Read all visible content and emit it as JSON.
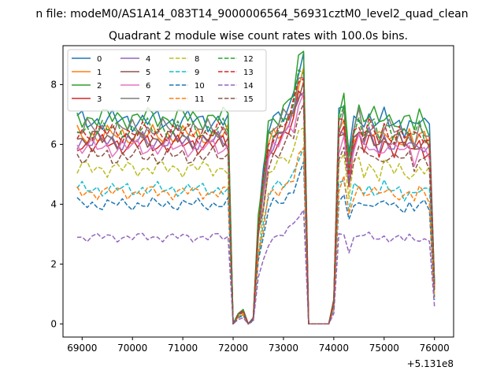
{
  "suptitle": "n file: modeM0/AS1A14_083T14_9000006564_56931cztM0_level2_quad_clean",
  "chart_data": {
    "type": "line",
    "title": "Quadrant 2 module wise count rates with 100.0s bins.",
    "xlabel": "",
    "ylabel": "",
    "x_offset_label": "+5.131e8",
    "xlim": [
      68620,
      76380
    ],
    "ylim": [
      -0.44,
      9.3
    ],
    "xticks": [
      69000,
      70000,
      71000,
      72000,
      73000,
      74000,
      75000,
      76000
    ],
    "xtick_labels": [
      "69000",
      "70000",
      "71000",
      "72000",
      "73000",
      "74000",
      "75000",
      "76000"
    ],
    "yticks": [
      0,
      2,
      4,
      6,
      8
    ],
    "ytick_labels": [
      "0",
      "2",
      "4",
      "6",
      "8"
    ],
    "legend": {
      "placement": "top-left",
      "columns": 4
    },
    "base_profile": {
      "x": [
        68900,
        69000,
        69100,
        69200,
        69300,
        69400,
        69500,
        69600,
        69700,
        69800,
        69900,
        70000,
        70100,
        70200,
        70300,
        70400,
        70500,
        70600,
        70700,
        70800,
        70900,
        71000,
        71100,
        71200,
        71300,
        71400,
        71500,
        71600,
        71700,
        71800,
        71900,
        72000,
        72100,
        72200,
        72300,
        72400,
        72500,
        72600,
        72700,
        72800,
        72900,
        73000,
        73100,
        73200,
        73300,
        73400,
        73500,
        73600,
        73700,
        73800,
        73900,
        74000,
        74100,
        74200,
        74300,
        74400,
        74500,
        74600,
        74700,
        74800,
        74900,
        75000,
        75100,
        75200,
        75300,
        75400,
        75500,
        75600,
        75700,
        75800,
        75900,
        76000
      ],
      "shape": [
        1.0,
        1.0,
        1.0,
        1.0,
        1.0,
        1.0,
        1.0,
        1.0,
        1.0,
        1.0,
        1.0,
        1.0,
        1.0,
        1.0,
        1.0,
        1.0,
        1.0,
        1.0,
        1.0,
        1.0,
        1.0,
        1.0,
        1.0,
        1.0,
        1.0,
        1.0,
        1.0,
        1.0,
        1.0,
        1.0,
        1.0,
        0.0,
        0.05,
        0.07,
        0.0,
        0.03,
        0.5,
        0.72,
        0.95,
        1.0,
        1.02,
        1.05,
        1.08,
        1.12,
        1.25,
        1.3,
        0.0,
        0.0,
        0.0,
        0.0,
        0.0,
        0.12,
        1.02,
        1.08,
        0.82,
        1.0,
        1.05,
        0.98,
        1.02,
        1.0,
        0.96,
        1.02,
        1.0,
        0.98,
        1.0,
        0.97,
        0.99,
        0.95,
        1.0,
        0.98,
        0.96,
        0.2
      ]
    },
    "series": [
      {
        "name": "0",
        "level": 6.8,
        "dashed": false,
        "color": "#1f77b4"
      },
      {
        "name": "1",
        "level": 6.3,
        "dashed": false,
        "color": "#ff7f0e"
      },
      {
        "name": "2",
        "level": 6.9,
        "dashed": false,
        "color": "#2ca02c"
      },
      {
        "name": "3",
        "level": 6.0,
        "dashed": false,
        "color": "#d62728"
      },
      {
        "name": "4",
        "level": 6.1,
        "dashed": false,
        "color": "#9467bd"
      },
      {
        "name": "5",
        "level": 6.2,
        "dashed": false,
        "color": "#8c564b"
      },
      {
        "name": "6",
        "level": 5.9,
        "dashed": false,
        "color": "#e377c2"
      },
      {
        "name": "7",
        "level": 6.5,
        "dashed": false,
        "color": "#7f7f7f"
      },
      {
        "name": "8",
        "level": 5.2,
        "dashed": true,
        "color": "#bcbd22"
      },
      {
        "name": "9",
        "level": 4.5,
        "dashed": true,
        "color": "#17becf"
      },
      {
        "name": "10",
        "level": 4.0,
        "dashed": true,
        "color": "#1f77b4"
      },
      {
        "name": "11",
        "level": 4.4,
        "dashed": true,
        "color": "#ff7f0e"
      },
      {
        "name": "12",
        "level": 6.5,
        "dashed": true,
        "color": "#2ca02c"
      },
      {
        "name": "13",
        "level": 6.4,
        "dashed": true,
        "color": "#d62728"
      },
      {
        "name": "14",
        "level": 2.9,
        "dashed": true,
        "color": "#9467bd"
      },
      {
        "name": "15",
        "level": 5.6,
        "dashed": true,
        "color": "#8c564b"
      }
    ]
  }
}
